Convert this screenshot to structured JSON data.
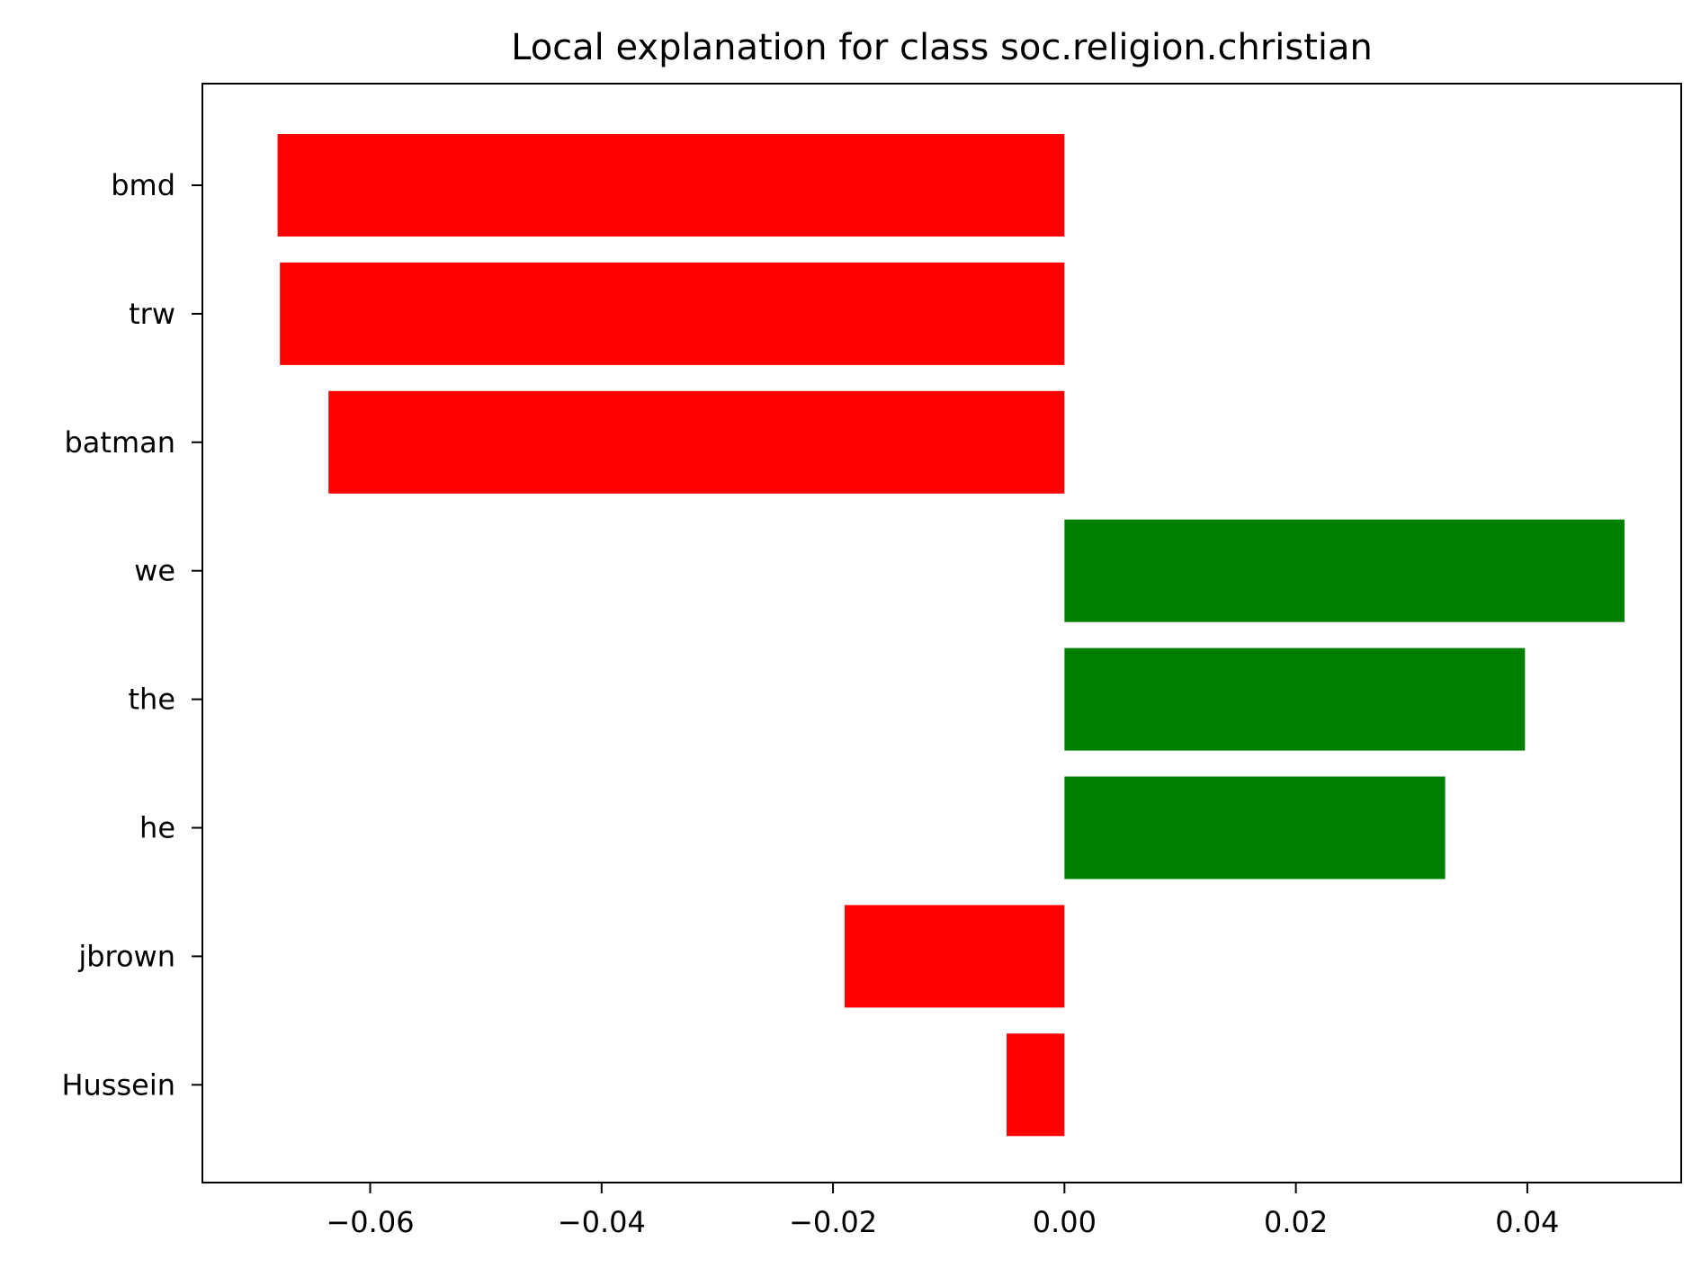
{
  "chart_data": {
    "type": "bar",
    "orientation": "horizontal",
    "title": "Local explanation for class soc.religion.christian",
    "xlabel": "",
    "ylabel": "",
    "categories": [
      "bmd",
      "trw",
      "batman",
      "we",
      "the",
      "he",
      "jbrown",
      "Hussein"
    ],
    "values": [
      -0.068,
      -0.0678,
      -0.0636,
      0.0484,
      0.0398,
      0.0329,
      -0.019,
      -0.005
    ],
    "colors": [
      "#ff0000",
      "#ff0000",
      "#ff0000",
      "#008000",
      "#008000",
      "#008000",
      "#ff0000",
      "#ff0000"
    ],
    "positive_color": "#008000",
    "negative_color": "#ff0000",
    "xlim": [
      -0.0745,
      0.0533
    ],
    "xticks": [
      -0.06,
      -0.04,
      -0.02,
      0.0,
      0.02,
      0.04
    ],
    "xtick_labels": [
      "−0.06",
      "−0.04",
      "−0.02",
      "0.00",
      "0.02",
      "0.04"
    ],
    "grid": false,
    "legend": "none"
  }
}
